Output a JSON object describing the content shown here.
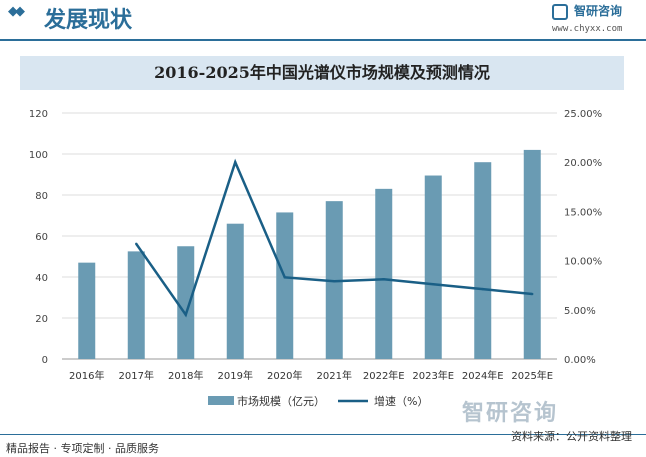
{
  "header": {
    "section_title": "发展现状",
    "brand_name": "智研咨询",
    "brand_url": "www.chyxx.com"
  },
  "chart_data": {
    "type": "bar",
    "title": "2016-2025年中国光谱仪市场规模及预测情况",
    "categories": [
      "2016年",
      "2017年",
      "2018年",
      "2019年",
      "2020年",
      "2021年",
      "2022年E",
      "2023年E",
      "2024年E",
      "2025年E"
    ],
    "y_left": {
      "ticks": [
        "0",
        "20",
        "40",
        "60",
        "80",
        "100",
        "120"
      ],
      "range": [
        0,
        120
      ]
    },
    "y_right": {
      "ticks": [
        "0.00%",
        "5.00%",
        "10.00%",
        "15.00%",
        "20.00%",
        "25.00%"
      ],
      "range": [
        0,
        25
      ]
    },
    "series": [
      {
        "name": "市场规模（亿元）",
        "type": "bar",
        "axis": "left",
        "color": "#6a9bb3",
        "values": [
          47,
          52.5,
          55,
          66,
          71.5,
          77,
          83,
          89.5,
          96,
          102
        ]
      },
      {
        "name": "增速（%）",
        "type": "line",
        "axis": "right",
        "color": "#1a5f86",
        "values": [
          null,
          11.7,
          4.5,
          20.0,
          8.3,
          7.9,
          8.1,
          7.6,
          7.1,
          6.6
        ]
      }
    ],
    "grid": true,
    "legend_position": "bottom"
  },
  "watermark": {
    "brand": "智研咨询"
  },
  "footer": {
    "left": "精品报告 · 专项定制 · 品质服务",
    "right": "资料来源：公开资料整理"
  }
}
